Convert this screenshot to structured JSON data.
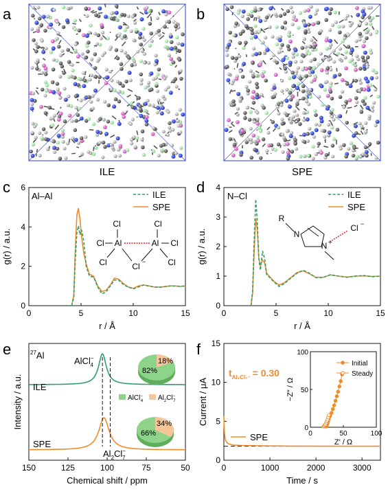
{
  "colors": {
    "ile": "#2e9e6a",
    "spe": "#f08a2a",
    "box": "#2b3fd6",
    "pie_green": "#8dd38a",
    "pie_orange": "#f7c59a"
  },
  "panels": {
    "a": {
      "letter": "a",
      "label": "ILE"
    },
    "b": {
      "letter": "b",
      "label": "SPE"
    },
    "c": {
      "letter": "c",
      "pair": "Al–Al"
    },
    "d": {
      "letter": "d",
      "pair": "N–Cl"
    },
    "e": {
      "letter": "e",
      "nucleus_sup": "27",
      "nucleus": "Al",
      "peak_left": "AlCl",
      "peak_left_sub": "4",
      "peak_left_sup": "−",
      "peak_right": "Al",
      "peak_right_sub1": "2",
      "peak_right_mid": "Cl",
      "peak_right_sub2": "7",
      "peak_right_sup": "−",
      "trace_ile": "ILE",
      "trace_spe": "SPE"
    },
    "f": {
      "letter": "f",
      "tnum_t": "t",
      "tnum_sub": "Al₂Cl₇⁻",
      "tnum_val": "= 0.30",
      "legend": "SPE"
    }
  },
  "structures": {
    "c": {
      "cl": "Cl",
      "al": "Al",
      "cl_minus": "Cl",
      "minus": "−"
    },
    "d": {
      "r": "R",
      "n": "N",
      "plus": "+",
      "cl": "Cl",
      "minus": "−"
    }
  },
  "pies": [
    {
      "trace": "ILE",
      "values": [
        82,
        18
      ],
      "labels": [
        "82%",
        "18%"
      ]
    },
    {
      "trace": "SPE",
      "values": [
        66,
        34
      ],
      "labels": [
        "66%",
        "34%"
      ]
    }
  ],
  "pie_legend": {
    "a": "AlCl",
    "a_sub": "4",
    "a_sup": "−",
    "b": "Al",
    "b_sub1": "2",
    "b_mid": "Cl",
    "b_sub2": "7",
    "b_sup": "−"
  },
  "chart_data": [
    {
      "type": "line",
      "panel": "c",
      "xlabel": "r / Å",
      "ylabel": "g(r) / a.u.",
      "xlim": [
        0,
        15
      ],
      "ylim": [
        0,
        6
      ],
      "xticks": [
        0,
        5,
        10,
        15
      ],
      "yticks": [
        0,
        2,
        4,
        6
      ],
      "series": [
        {
          "name": "ILE",
          "style": "dashed",
          "x": [
            4.1,
            4.3,
            4.45,
            4.6,
            4.75,
            4.9,
            5.05,
            5.25,
            5.5,
            5.8,
            6.2,
            6.6,
            7.0,
            7.4,
            7.8,
            8.2,
            8.6,
            9.0,
            9.5,
            10.0,
            10.5,
            11.0,
            11.5,
            12.0,
            12.5,
            13.0,
            13.5,
            14.0,
            14.5,
            15.0
          ],
          "y": [
            0,
            0.4,
            2.3,
            3.7,
            4.05,
            3.6,
            3.85,
            3.3,
            2.0,
            1.5,
            1.45,
            0.95,
            0.6,
            0.7,
            1.0,
            1.3,
            1.3,
            1.1,
            0.95,
            0.85,
            0.95,
            1.05,
            1.0,
            0.95,
            0.93,
            0.96,
            1.0,
            1.0,
            0.98,
            1.0
          ]
        },
        {
          "name": "SPE",
          "style": "solid",
          "x": [
            4.1,
            4.3,
            4.45,
            4.6,
            4.75,
            4.9,
            5.05,
            5.25,
            5.5,
            5.8,
            6.2,
            6.6,
            7.0,
            7.4,
            7.8,
            8.2,
            8.6,
            9.0,
            9.5,
            10.0,
            10.5,
            11.0,
            11.5,
            12.0,
            12.5,
            13.0,
            13.5,
            14.0,
            14.5,
            15.0
          ],
          "y": [
            0,
            0.5,
            2.8,
            4.6,
            4.95,
            4.4,
            3.5,
            2.7,
            2.1,
            1.6,
            1.5,
            1.0,
            0.72,
            0.78,
            1.05,
            1.4,
            1.35,
            1.15,
            0.95,
            0.88,
            1.0,
            1.05,
            1.0,
            0.95,
            0.94,
            0.97,
            1.0,
            1.0,
            0.98,
            1.0
          ]
        }
      ]
    },
    {
      "type": "line",
      "panel": "d",
      "xlabel": "r / Å",
      "ylabel": "g(r) / a.u.",
      "xlim": [
        0,
        15
      ],
      "ylim": [
        0,
        4
      ],
      "xticks": [
        0,
        5,
        10,
        15
      ],
      "yticks": [
        0,
        1,
        2,
        3,
        4
      ],
      "series": [
        {
          "name": "ILE",
          "style": "dashed",
          "x": [
            2.6,
            2.75,
            2.9,
            3.05,
            3.2,
            3.35,
            3.5,
            3.7,
            3.9,
            4.1,
            4.4,
            4.8,
            5.3,
            5.8,
            6.3,
            7.0,
            7.6,
            8.2,
            8.8,
            9.5,
            10.2,
            11.0,
            11.8,
            12.6,
            13.4,
            14.2,
            15.0
          ],
          "y": [
            0,
            0.5,
            2.2,
            3.6,
            2.9,
            1.6,
            1.2,
            1.85,
            1.6,
            1.05,
            0.95,
            0.8,
            0.65,
            0.75,
            0.9,
            1.1,
            1.2,
            1.1,
            0.95,
            0.95,
            1.05,
            1.0,
            0.96,
            1.0,
            1.02,
            0.98,
            1.0
          ]
        },
        {
          "name": "SPE",
          "style": "solid",
          "x": [
            2.6,
            2.75,
            2.9,
            3.05,
            3.2,
            3.35,
            3.5,
            3.7,
            3.9,
            4.1,
            4.4,
            4.8,
            5.3,
            5.8,
            6.3,
            7.0,
            7.6,
            8.2,
            8.8,
            9.5,
            10.2,
            11.0,
            11.8,
            12.6,
            13.4,
            14.2,
            15.0
          ],
          "y": [
            0,
            0.4,
            1.8,
            2.95,
            2.6,
            1.6,
            1.35,
            1.55,
            1.45,
            1.1,
            0.98,
            0.82,
            0.7,
            0.78,
            0.92,
            1.12,
            1.18,
            1.08,
            0.96,
            0.96,
            1.04,
            1.0,
            0.97,
            1.0,
            1.01,
            0.99,
            1.0
          ]
        }
      ]
    },
    {
      "type": "line",
      "panel": "e",
      "xlabel": "Chemical shift / ppm",
      "ylabel": "Intensity / a.u.",
      "xlim": [
        150,
        50
      ],
      "reversed_x": true,
      "xticks": [
        150,
        125,
        100,
        75,
        50
      ],
      "dashed_markers": [
        103,
        98
      ],
      "series": [
        {
          "name": "ILE",
          "peak": 103,
          "width": 3,
          "amplitude": 1.0
        },
        {
          "name": "SPE",
          "peak": 102,
          "width": 4,
          "amplitude": 1.0
        }
      ]
    },
    {
      "type": "line",
      "panel": "f",
      "xlabel": "Time / s",
      "ylabel": "Current / μA",
      "xlim": [
        0,
        3400
      ],
      "ylim": [
        0,
        15
      ],
      "xticks": [
        0,
        1000,
        2000,
        3000
      ],
      "yticks": [
        0,
        5,
        10,
        15
      ],
      "steady_current": 1.8,
      "series": [
        {
          "name": "SPE",
          "x": [
            0,
            5,
            15,
            30,
            60,
            100,
            200,
            400,
            800,
            1500,
            2500,
            3400
          ],
          "y": [
            5.7,
            4.5,
            3.4,
            2.7,
            2.3,
            2.1,
            1.95,
            1.9,
            1.85,
            1.82,
            1.8,
            1.8
          ]
        }
      ],
      "inset": {
        "xlabel": "Z′ / Ω",
        "ylabel": "−Z″ / Ω",
        "xlim": [
          0,
          100
        ],
        "ylim": [
          0,
          100
        ],
        "xticks": [
          0,
          50,
          100
        ],
        "yticks": [
          0,
          50,
          100
        ],
        "series": [
          {
            "name": "Initial",
            "marker": "filled",
            "x": [
              24,
              25,
              26,
              27,
              28,
              30,
              32,
              34,
              36,
              38,
              40,
              42,
              44,
              46,
              48
            ],
            "y": [
              1,
              3,
              5,
              8,
              11,
              15,
              19,
              24,
              29,
              35,
              41,
              47,
              54,
              61,
              70
            ]
          },
          {
            "name": "Steady",
            "marker": "open",
            "x": [
              20,
              21,
              22,
              23,
              24,
              25,
              26,
              27,
              28
            ],
            "y": [
              1,
              2,
              3,
              4,
              6,
              8,
              10,
              13,
              16
            ]
          }
        ]
      }
    }
  ]
}
